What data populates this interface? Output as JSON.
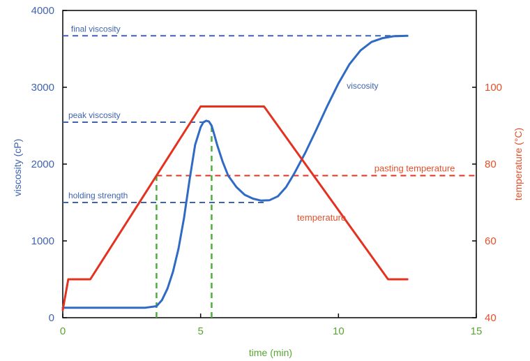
{
  "chart_data": {
    "type": "line",
    "xlabel": "time (min)",
    "ylabel": "viscosity (cP)",
    "y2label": "temperature (°C)",
    "xlim": [
      0,
      15
    ],
    "ylim": [
      0,
      4000
    ],
    "y2lim": [
      40,
      120
    ],
    "x_ticks": [
      "0",
      "5",
      "10",
      "15"
    ],
    "y_ticks": [
      "0",
      "1000",
      "2000",
      "3000",
      "4000"
    ],
    "y2_ticks": [
      "40",
      "60",
      "80",
      "100"
    ],
    "grid": false,
    "colors": {
      "viscosity": "#2f6ac4",
      "temperature": "#e3321f",
      "reference": "#3f63b0",
      "marker": "#4caf3a"
    },
    "series": [
      {
        "name": "viscosity",
        "axis": "left",
        "x": [
          0,
          1,
          2,
          3,
          3.4,
          3.6,
          3.8,
          4.0,
          4.2,
          4.4,
          4.6,
          4.8,
          5.0,
          5.1,
          5.2,
          5.3,
          5.4,
          5.5,
          5.6,
          5.8,
          6.0,
          6.3,
          6.6,
          6.9,
          7.2,
          7.5,
          7.8,
          8.1,
          8.4,
          8.8,
          9.2,
          9.6,
          10.0,
          10.4,
          10.8,
          11.2,
          11.6,
          12.0,
          12.5
        ],
        "y": [
          130,
          130,
          130,
          130,
          150,
          230,
          380,
          600,
          900,
          1300,
          1800,
          2250,
          2480,
          2545,
          2565,
          2555,
          2500,
          2380,
          2250,
          2030,
          1850,
          1700,
          1600,
          1550,
          1525,
          1530,
          1580,
          1700,
          1880,
          2150,
          2450,
          2760,
          3050,
          3300,
          3480,
          3590,
          3640,
          3665,
          3670
        ]
      },
      {
        "name": "temperature",
        "axis": "right",
        "x": [
          0,
          0.2,
          1.0,
          5.0,
          7.3,
          11.8,
          12.5
        ],
        "y": [
          42,
          50,
          50,
          95,
          95,
          50,
          50
        ]
      }
    ],
    "reference_lines": [
      {
        "label": "final viscosity",
        "axis": "left",
        "value": 3670,
        "x_from": 0,
        "x_to": 12.4,
        "label_x": 0.2
      },
      {
        "label": "peak viscosity",
        "axis": "left",
        "value": 2545,
        "x_from": 0,
        "x_to": 5.3,
        "label_x": 0.1
      },
      {
        "label": "holding strength",
        "axis": "left",
        "value": 1500,
        "x_from": 0,
        "x_to": 7.3,
        "label_x": 0.1
      },
      {
        "label": "pasting temperature",
        "axis": "right",
        "value": 77,
        "x_from": 3.4,
        "x_to": 15,
        "label_x": 11.2
      }
    ],
    "vertical_markers": [
      {
        "x": 3.4,
        "y_from": 0,
        "y_to_temp": 77
      },
      {
        "x": 5.4,
        "y_from": 0,
        "y_to_visc": 2545
      }
    ],
    "annotations": [
      {
        "text": "viscosity",
        "x": 10.3,
        "y_visc": 2980,
        "color": "blue"
      },
      {
        "text": "temperature",
        "x": 8.5,
        "y_temp": 65.3,
        "color": "red"
      }
    ]
  }
}
